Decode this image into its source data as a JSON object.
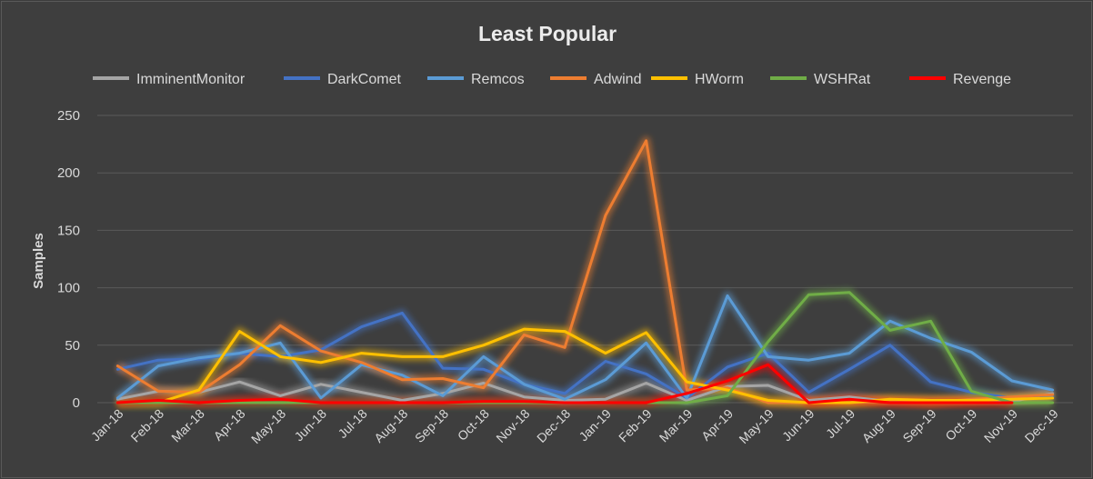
{
  "chart_data": {
    "type": "line",
    "title": "Least Popular",
    "xlabel": "",
    "ylabel": "Samples",
    "ylim": [
      0,
      250
    ],
    "yticks": [
      0,
      50,
      100,
      150,
      200,
      250
    ],
    "grid": true,
    "legend_position": "top",
    "categories": [
      "Jan-18",
      "Feb-18",
      "Mar-18",
      "Apr-18",
      "May-18",
      "Jun-18",
      "Jul-18",
      "Aug-18",
      "Sep-18",
      "Oct-18",
      "Nov-18",
      "Dec-18",
      "Jan-19",
      "Feb-19",
      "Mar-19",
      "Apr-19",
      "May-19",
      "Jun-19",
      "Jul-19",
      "Aug-19",
      "Sep-19",
      "Oct-19",
      "Nov-19",
      "Dec-19"
    ],
    "series": [
      {
        "name": "ImminentMonitor",
        "color": "#a5a5a5",
        "values": [
          3,
          10,
          9,
          18,
          6,
          16,
          9,
          2,
          8,
          17,
          5,
          2,
          3,
          17,
          2,
          14,
          15,
          2,
          5,
          1,
          1,
          1,
          1,
          8
        ]
      },
      {
        "name": "DarkComet",
        "color": "#4472c4",
        "values": [
          29,
          37,
          38,
          43,
          40,
          46,
          66,
          78,
          30,
          29,
          16,
          8,
          36,
          25,
          4,
          31,
          43,
          9,
          29,
          50,
          18,
          9,
          4,
          5
        ]
      },
      {
        "name": "Remcos",
        "color": "#5b9bd5",
        "values": [
          4,
          32,
          39,
          43,
          52,
          4,
          33,
          24,
          6,
          40,
          16,
          3,
          20,
          52,
          4,
          93,
          40,
          37,
          43,
          71,
          56,
          44,
          19,
          11
        ]
      },
      {
        "name": "Adwind",
        "color": "#ed7d31",
        "values": [
          32,
          10,
          9,
          33,
          67,
          45,
          35,
          20,
          21,
          13,
          59,
          48,
          163,
          228,
          11,
          13,
          0,
          0,
          0,
          1,
          0,
          3,
          5,
          7
        ]
      },
      {
        "name": "HWorm",
        "color": "#ffc000",
        "values": [
          0,
          0,
          11,
          62,
          40,
          35,
          43,
          40,
          40,
          50,
          64,
          62,
          43,
          61,
          18,
          11,
          2,
          0,
          0,
          3,
          2,
          2,
          3,
          4
        ]
      },
      {
        "name": "WSHRat",
        "color": "#70ad47",
        "values": [
          0,
          0,
          0,
          0,
          0,
          0,
          0,
          0,
          0,
          0,
          0,
          0,
          0,
          0,
          0,
          6,
          53,
          94,
          96,
          63,
          71,
          10,
          0,
          0
        ]
      },
      {
        "name": "Revenge",
        "color": "#ff0000",
        "values": [
          0,
          2,
          0,
          2,
          3,
          0,
          0,
          0,
          0,
          1,
          1,
          0,
          0,
          0,
          8,
          19,
          33,
          0,
          3,
          0,
          0,
          0,
          0,
          null
        ]
      }
    ]
  }
}
